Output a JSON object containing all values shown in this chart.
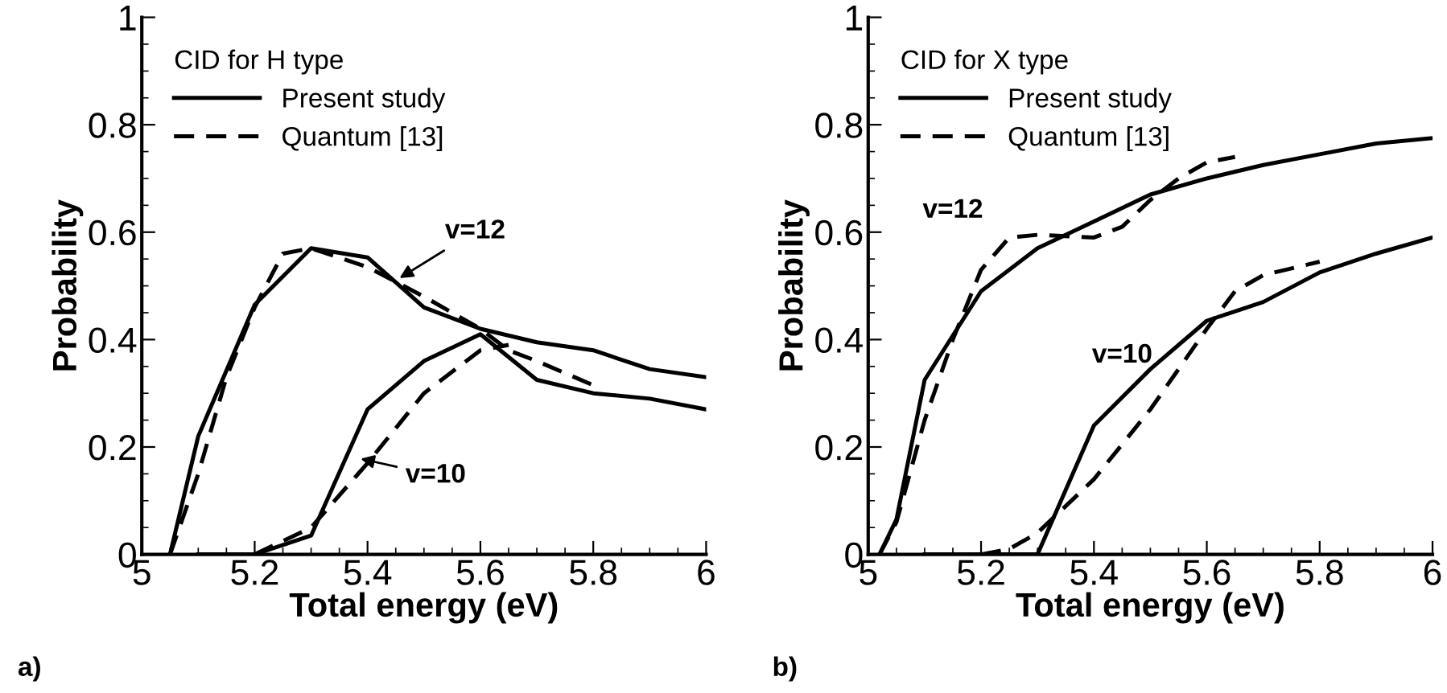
{
  "chart_data": [
    {
      "type": "line",
      "xlabel": "Total energy (eV)",
      "ylabel": "Probability",
      "legend_title": "CID for H type",
      "legend": "top left",
      "grid": false,
      "xlim": [
        5,
        6
      ],
      "ylim": [
        0,
        1
      ],
      "xticks": [
        5,
        5.2,
        5.4,
        5.6,
        5.8,
        6
      ],
      "yticks": [
        0,
        0.2,
        0.4,
        0.6,
        0.8,
        1
      ],
      "annotations": [
        {
          "text": "v=12",
          "x": 5.45,
          "y": 0.51
        },
        {
          "text": "v=10",
          "x": 5.38,
          "y": 0.18
        },
        "a)"
      ],
      "series": [
        {
          "name": "Present study",
          "color": "#000000",
          "line_style": "solid",
          "x": [
            5.05,
            5.1,
            5.2,
            5.3,
            5.4,
            5.5,
            5.6,
            5.7,
            5.8,
            5.9,
            6.0
          ],
          "values": [
            0,
            0.22,
            0.465,
            0.57,
            0.553,
            0.46,
            0.42,
            0.395,
            0.38,
            0.345,
            0.33
          ]
        },
        {
          "name": "Quantum [13]",
          "color": "#000000",
          "line_style": "dashed",
          "x": [
            5.05,
            5.1,
            5.15,
            5.2,
            5.25,
            5.3,
            5.4,
            5.5,
            5.6,
            5.65,
            5.7,
            5.8
          ],
          "values": [
            0,
            0.15,
            0.33,
            0.46,
            0.56,
            0.57,
            0.535,
            0.48,
            0.42,
            0.38,
            0.36,
            0.315
          ]
        },
        {
          "color": "#000000",
          "line_style": "solid",
          "x": [
            5.1,
            5.2,
            5.3,
            5.4,
            5.5,
            5.6,
            5.7,
            5.8,
            5.9,
            6.0
          ],
          "values": [
            0,
            0,
            0.035,
            0.27,
            0.36,
            0.41,
            0.325,
            0.3,
            0.29,
            0.27
          ]
        },
        {
          "color": "#000000",
          "line_style": "dashed",
          "x": [
            5.2,
            5.3,
            5.4,
            5.5,
            5.6,
            5.65
          ],
          "values": [
            0,
            0.05,
            0.17,
            0.3,
            0.38,
            0.39
          ]
        }
      ]
    },
    {
      "type": "line",
      "xlabel": "Total energy (eV)",
      "ylabel": "Probability",
      "legend_title": "CID for X type",
      "legend": "top left",
      "grid": false,
      "xlim": [
        5,
        6
      ],
      "ylim": [
        0,
        1
      ],
      "xticks": [
        5,
        5.2,
        5.4,
        5.6,
        5.8,
        6
      ],
      "yticks": [
        0,
        0.2,
        0.4,
        0.6,
        0.8,
        1
      ],
      "annotations": [
        "v=12",
        "v=10",
        "b)"
      ],
      "series": [
        {
          "name": "Present study",
          "color": "#000000",
          "line_style": "solid",
          "x": [
            5.02,
            5.05,
            5.1,
            5.2,
            5.3,
            5.4,
            5.5,
            5.6,
            5.7,
            5.8,
            5.9,
            6.0
          ],
          "values": [
            0,
            0.065,
            0.325,
            0.49,
            0.57,
            0.62,
            0.67,
            0.7,
            0.725,
            0.745,
            0.765,
            0.775
          ]
        },
        {
          "name": "Quantum [13]",
          "color": "#000000",
          "line_style": "dashed",
          "x": [
            5.02,
            5.05,
            5.1,
            5.15,
            5.2,
            5.25,
            5.3,
            5.4,
            5.45,
            5.5,
            5.55,
            5.6,
            5.65
          ],
          "values": [
            0,
            0.06,
            0.25,
            0.4,
            0.53,
            0.59,
            0.595,
            0.59,
            0.61,
            0.66,
            0.7,
            0.73,
            0.74
          ]
        },
        {
          "color": "#000000",
          "line_style": "solid",
          "x": [
            5.1,
            5.3,
            5.4,
            5.5,
            5.6,
            5.7,
            5.8,
            5.9,
            6.0
          ],
          "values": [
            0,
            0,
            0.24,
            0.345,
            0.435,
            0.47,
            0.525,
            0.56,
            0.59
          ]
        },
        {
          "color": "#000000",
          "line_style": "dashed",
          "x": [
            5.2,
            5.25,
            5.3,
            5.4,
            5.5,
            5.6,
            5.65,
            5.7,
            5.8
          ],
          "values": [
            0,
            0.01,
            0.04,
            0.14,
            0.27,
            0.42,
            0.49,
            0.52,
            0.545
          ]
        }
      ]
    }
  ]
}
